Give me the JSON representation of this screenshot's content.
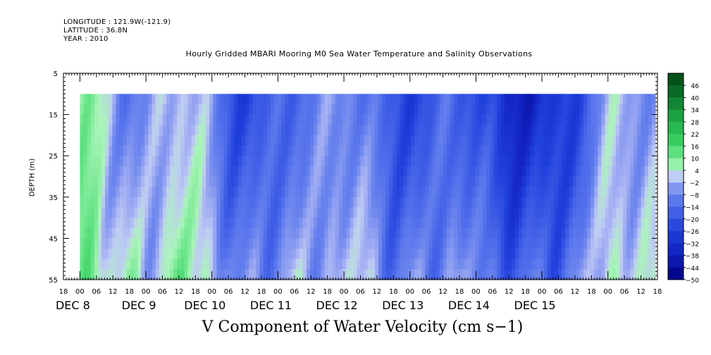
{
  "header": {
    "longitude": "LONGITUDE : 121.9W(-121.9)",
    "latitude": "LATITUDE : 36.8N",
    "year": "YEAR : 2010"
  },
  "chart_data": {
    "type": "heatmap",
    "title": "Hourly Gridded MBARI Mooring M0 Sea Water Temperature and Salinity Observations",
    "ylabel": "DEPTH (m)",
    "xlabel": "V Component of Water Velocity (cm s−1)",
    "y_ticks": [
      "5",
      "15",
      "25",
      "35",
      "45",
      "55"
    ],
    "ylim": [
      55,
      5
    ],
    "x_hour_ticks": [
      "18",
      "00",
      "06",
      "12",
      "18",
      "00",
      "06",
      "12",
      "18",
      "00",
      "06",
      "12",
      "18",
      "00",
      "06",
      "12",
      "18",
      "00",
      "06",
      "12",
      "18",
      "00",
      "06",
      "12",
      "18",
      "00",
      "06",
      "12",
      "18",
      "00",
      "06",
      "12",
      "18",
      "00",
      "06",
      "12",
      "18"
    ],
    "x_day_labels": [
      "DEC 8",
      "DEC 9",
      "DEC 10",
      "DEC 11",
      "DEC 12",
      "DEC 13",
      "DEC 14",
      "DEC 15"
    ],
    "xlim": [
      "DEC 7 18:00",
      "DEC 15 18:00"
    ],
    "data_depth_range": [
      10,
      55
    ],
    "colorbar_levels": [
      "46",
      "40",
      "34",
      "28",
      "22",
      "16",
      "10",
      "4",
      "−2",
      "−8",
      "−14",
      "−20",
      "−26",
      "−32",
      "−38",
      "−44",
      "−50"
    ],
    "colorbar_range": [
      -50,
      50
    ],
    "colors": {
      "strong_negative": "#1e3ad2",
      "negative": "#5a78ee",
      "near_zero_negative": "#a9b6f4",
      "near_zero_positive": "#a8f0b6",
      "positive": "#38d86a"
    }
  }
}
